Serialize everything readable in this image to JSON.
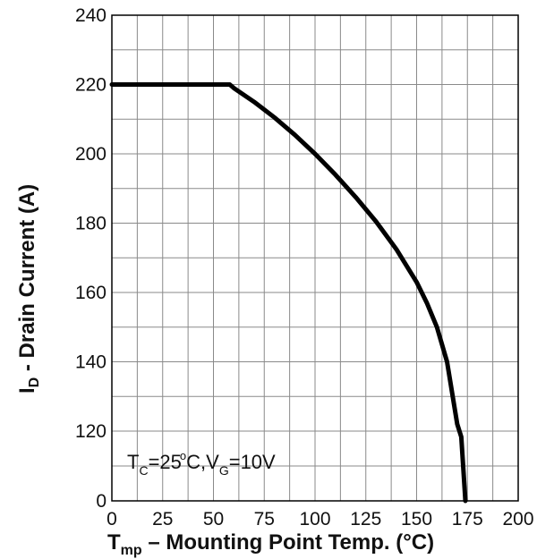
{
  "chart_data": {
    "type": "line",
    "title": "",
    "xlabel": {
      "main": "T",
      "sub": "mp",
      "rest": " – Mounting Point Temp.  (°C)"
    },
    "ylabel": {
      "main": "I",
      "sub": "D",
      "rest": " - Drain Current (A)"
    },
    "x_ticks": [
      0,
      25,
      50,
      75,
      100,
      125,
      150,
      175,
      200
    ],
    "x_tick_labels": [
      "0",
      "25",
      "50",
      "75",
      "100",
      "125",
      "150",
      "175",
      "200"
    ],
    "y_ticks": [
      0,
      120,
      140,
      160,
      180,
      200,
      220,
      240
    ],
    "y_tick_labels": [
      "0",
      "120",
      "140",
      "160",
      "180",
      "200",
      "220",
      "240"
    ],
    "xlim": [
      0,
      200
    ],
    "ylim_display": "0, then 120 to 240 (broken axis between 0 and 120)",
    "grid": true,
    "series": [
      {
        "x": [
          0,
          55,
          58,
          60,
          70,
          80,
          90,
          100,
          110,
          120,
          130,
          140,
          150,
          155,
          160,
          165,
          170,
          172,
          174
        ],
        "y": [
          220,
          220,
          220,
          219,
          215,
          210.5,
          205.5,
          200,
          194,
          187.5,
          180.5,
          172.5,
          163,
          157,
          150,
          140,
          122,
          110,
          0
        ],
        "color": "#000000"
      }
    ],
    "annotation": {
      "t": "T",
      "tsub": "C",
      "eq1": "=25",
      "deg": "o",
      "c": "C,V",
      "vsub": "G",
      "eq2": "=10V"
    }
  }
}
